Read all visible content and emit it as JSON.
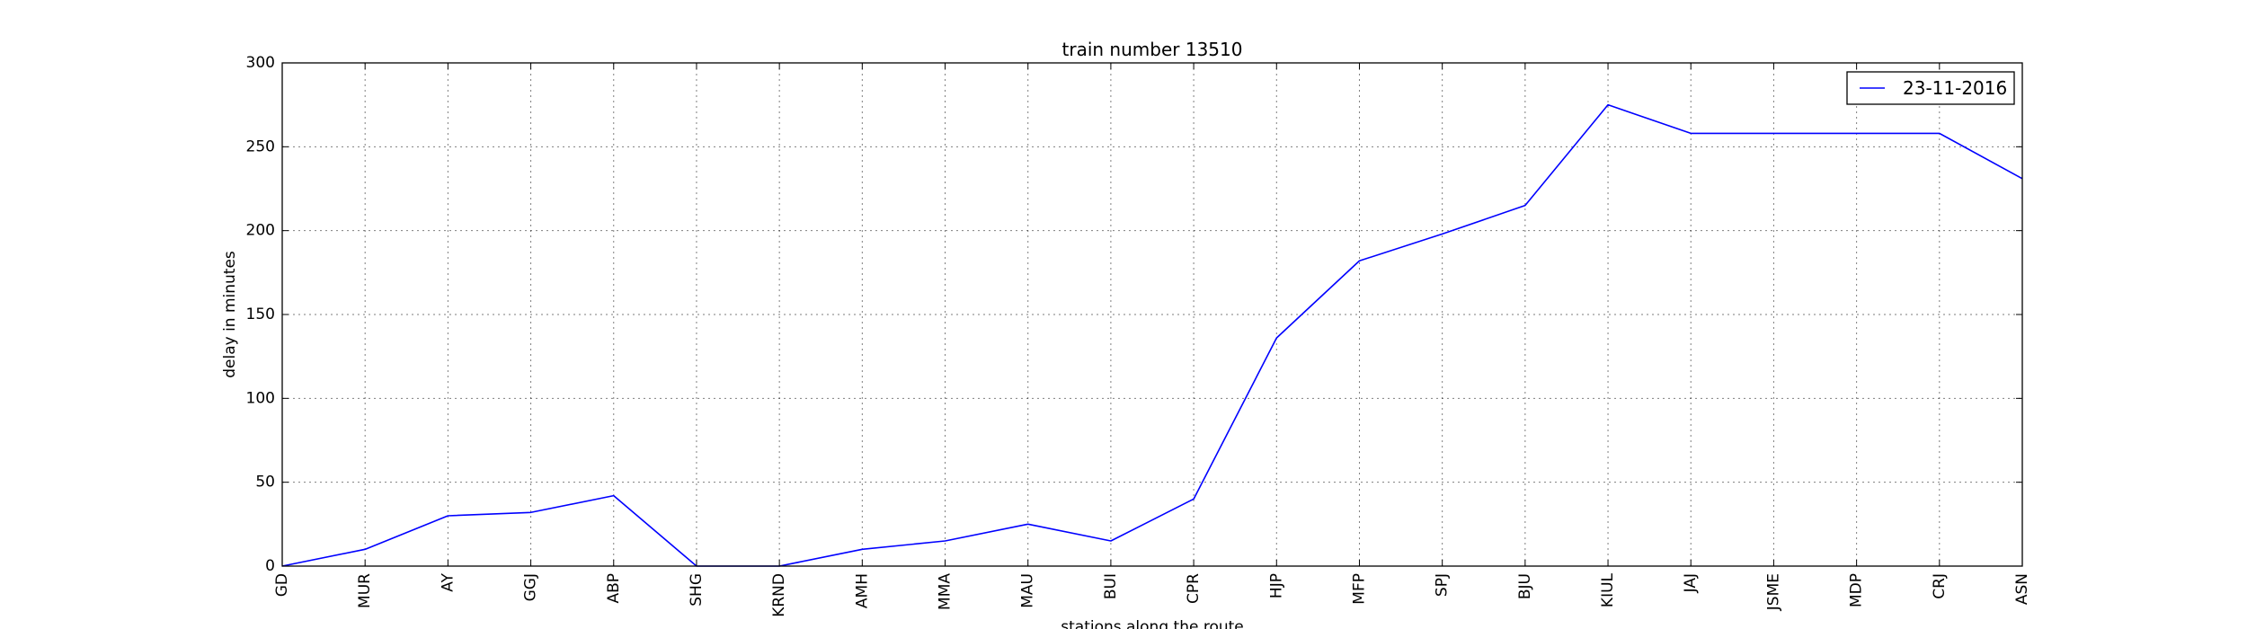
{
  "chart_data": {
    "type": "line",
    "title": "train number 13510",
    "xlabel": "stations along the route",
    "ylabel": "delay in minutes",
    "categories": [
      "GD",
      "MUR",
      "AY",
      "GGJ",
      "ABP",
      "SHG",
      "KRND",
      "AMH",
      "MMA",
      "MAU",
      "BUI",
      "CPR",
      "HJP",
      "MFP",
      "SPJ",
      "BJU",
      "KIUL",
      "JAJ",
      "JSME",
      "MDP",
      "CRJ",
      "ASN"
    ],
    "series": [
      {
        "name": "23-11-2016",
        "color": "#0000ff",
        "values": [
          0,
          10,
          30,
          32,
          42,
          0,
          0,
          10,
          15,
          25,
          15,
          40,
          136,
          182,
          198,
          215,
          275,
          258,
          258,
          258,
          258,
          231
        ]
      }
    ],
    "ylim": [
      0,
      300
    ],
    "yticks": [
      0,
      50,
      100,
      150,
      200,
      250,
      300
    ],
    "grid": true,
    "legend_position": "top-right"
  }
}
